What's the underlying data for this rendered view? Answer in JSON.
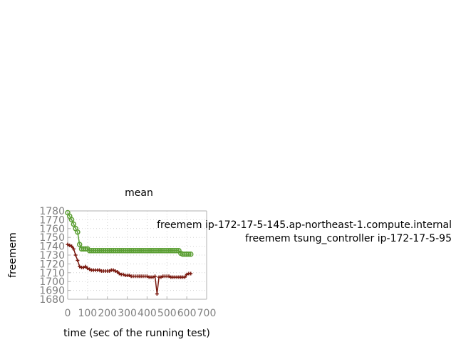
{
  "chart_data": {
    "type": "line",
    "title": "mean",
    "xlabel": "time (sec of the running test)",
    "ylabel": "freemem",
    "xlim": [
      0,
      700
    ],
    "ylim": [
      1680,
      1780
    ],
    "x_ticks": [
      "0",
      "100",
      "200",
      "300",
      "400",
      "500",
      "600",
      "700"
    ],
    "y_ticks": [
      "1680",
      "1690",
      "1700",
      "1710",
      "1720",
      "1730",
      "1740",
      "1750",
      "1760",
      "1770",
      "1780"
    ],
    "grid": true,
    "legend_position": "right",
    "series": [
      {
        "name": "freemem ip-172-17-5-145.ap-northeast-1.compute.internal",
        "legend_lines": [
          "freemem ip-172-17-5-145.ap-northeast-1.compute.internal"
        ],
        "color": "#5a9e32",
        "marker": "circle",
        "x": [
          0,
          10,
          20,
          30,
          40,
          50,
          60,
          70,
          80,
          90,
          100,
          110,
          120,
          130,
          140,
          150,
          160,
          170,
          180,
          190,
          200,
          210,
          220,
          230,
          240,
          250,
          260,
          270,
          280,
          290,
          300,
          310,
          320,
          330,
          340,
          350,
          360,
          370,
          380,
          390,
          400,
          410,
          420,
          430,
          440,
          450,
          460,
          470,
          480,
          490,
          500,
          510,
          520,
          530,
          540,
          550,
          560,
          570,
          580,
          590,
          600,
          610,
          620
        ],
        "y": [
          1778,
          1774,
          1770,
          1765,
          1760,
          1756,
          1742,
          1737,
          1737,
          1737,
          1737,
          1735,
          1735,
          1735,
          1735,
          1735,
          1735,
          1735,
          1735,
          1735,
          1735,
          1735,
          1735,
          1735,
          1735,
          1735,
          1735,
          1735,
          1735,
          1735,
          1735,
          1735,
          1735,
          1735,
          1735,
          1735,
          1735,
          1735,
          1735,
          1735,
          1735,
          1735,
          1735,
          1735,
          1735,
          1735,
          1735,
          1735,
          1735,
          1735,
          1735,
          1735,
          1735,
          1735,
          1735,
          1735,
          1735,
          1732,
          1731,
          1731,
          1731,
          1731,
          1731
        ]
      },
      {
        "name": "freemem tsung_controller ip-172-17-5-95",
        "legend_lines": [
          "freemem tsung_controller ip-172-17-5-95"
        ],
        "color": "#7a1a10",
        "marker": "plus",
        "x": [
          0,
          10,
          20,
          30,
          40,
          50,
          60,
          70,
          80,
          90,
          100,
          110,
          120,
          130,
          140,
          150,
          160,
          170,
          180,
          190,
          200,
          210,
          220,
          230,
          240,
          250,
          260,
          270,
          280,
          290,
          300,
          310,
          320,
          330,
          340,
          350,
          360,
          370,
          380,
          390,
          400,
          410,
          420,
          430,
          440,
          450,
          460,
          470,
          480,
          490,
          500,
          510,
          520,
          530,
          540,
          550,
          560,
          570,
          580,
          590,
          600,
          610,
          620
        ],
        "y": [
          1742,
          1741,
          1740,
          1737,
          1730,
          1724,
          1717,
          1716,
          1716,
          1717,
          1715,
          1714,
          1713,
          1713,
          1713,
          1713,
          1713,
          1712,
          1712,
          1712,
          1712,
          1712,
          1713,
          1713,
          1712,
          1711,
          1709,
          1708,
          1708,
          1707,
          1707,
          1707,
          1706,
          1706,
          1706,
          1706,
          1706,
          1706,
          1706,
          1706,
          1706,
          1705,
          1705,
          1705,
          1706,
          1686,
          1705,
          1705,
          1706,
          1706,
          1706,
          1706,
          1705,
          1705,
          1705,
          1705,
          1705,
          1705,
          1705,
          1705,
          1708,
          1709,
          1709
        ]
      }
    ]
  }
}
